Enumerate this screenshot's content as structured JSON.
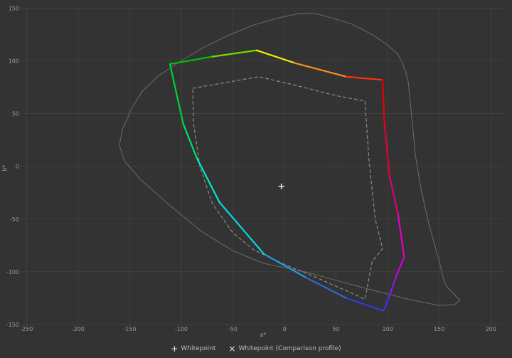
{
  "chart_data": {
    "type": "scatter",
    "title": "",
    "xlabel": "a*",
    "ylabel": "b*",
    "xlim": [
      -255,
      215
    ],
    "ylim": [
      -150,
      153
    ],
    "xticks": [
      -250,
      -200,
      -150,
      -100,
      -50,
      0,
      50,
      100,
      150,
      200
    ],
    "yticks": [
      -150,
      -100,
      -50,
      0,
      50,
      100,
      150
    ],
    "grid": true,
    "legend_position": "bottom-center",
    "legend": [
      {
        "glyph": "+",
        "label": "Whitepoint"
      },
      {
        "glyph": "×",
        "label": "Whitepoint (Comparison profile)"
      }
    ],
    "series": [
      {
        "role": "spectral locus",
        "style": "solid-gray",
        "color": "#6b6b6b",
        "closed": true,
        "points": [
          [
            -160,
            20
          ],
          [
            -157,
            35
          ],
          [
            -148,
            55
          ],
          [
            -138,
            71
          ],
          [
            -122,
            86
          ],
          [
            -100,
            100
          ],
          [
            -80,
            112
          ],
          [
            -55,
            124
          ],
          [
            -30,
            134
          ],
          [
            -5,
            141
          ],
          [
            15,
            145
          ],
          [
            30,
            145
          ],
          [
            45,
            141
          ],
          [
            65,
            135
          ],
          [
            85,
            125
          ],
          [
            100,
            115
          ],
          [
            110,
            106
          ],
          [
            114,
            99
          ],
          [
            118,
            88
          ],
          [
            120,
            80
          ],
          [
            122,
            60
          ],
          [
            124,
            40
          ],
          [
            127,
            10
          ],
          [
            132,
            -20
          ],
          [
            140,
            -55
          ],
          [
            150,
            -90
          ],
          [
            155,
            -110
          ],
          [
            158,
            -115
          ],
          [
            165,
            -122
          ],
          [
            170,
            -127
          ],
          [
            165,
            -131
          ],
          [
            150,
            -132
          ],
          [
            120,
            -126
          ],
          [
            80,
            -116
          ],
          [
            50,
            -108
          ],
          [
            20,
            -100
          ],
          [
            0,
            -96
          ],
          [
            -20,
            -92
          ],
          [
            -50,
            -80
          ],
          [
            -80,
            -62
          ],
          [
            -110,
            -38
          ],
          [
            -140,
            -12
          ],
          [
            -155,
            5
          ],
          [
            -160,
            20
          ]
        ]
      },
      {
        "role": "comparison gamut",
        "style": "dashed-gray",
        "color": "#8c8c8c",
        "closed": false,
        "points": [
          [
            -89,
            74
          ],
          [
            -60,
            79
          ],
          [
            -25,
            85
          ],
          [
            10,
            77
          ],
          [
            50,
            67
          ],
          [
            78,
            62
          ],
          [
            82,
            5
          ],
          [
            88,
            -50
          ],
          [
            95,
            -78
          ],
          [
            85,
            -90
          ],
          [
            78,
            -126
          ],
          [
            60,
            -118
          ],
          [
            30,
            -105
          ],
          [
            0,
            -93
          ],
          [
            -30,
            -79
          ],
          [
            -50,
            -63
          ],
          [
            -70,
            -35
          ],
          [
            -82,
            0
          ],
          [
            -88,
            40
          ],
          [
            -89,
            74
          ]
        ]
      },
      {
        "role": "profile gamut",
        "style": "hue-colored",
        "closed": true,
        "points": [
          [
            -111,
            97
          ],
          [
            -70,
            104
          ],
          [
            -27,
            110
          ],
          [
            10,
            98
          ],
          [
            60,
            85
          ],
          [
            95,
            82
          ],
          [
            97,
            40
          ],
          [
            102,
            -10
          ],
          [
            110,
            -45
          ],
          [
            116,
            -86
          ],
          [
            108,
            -105
          ],
          [
            102,
            -122
          ],
          [
            96,
            -137
          ],
          [
            60,
            -125
          ],
          [
            20,
            -105
          ],
          [
            -20,
            -83
          ],
          [
            -63,
            -34
          ],
          [
            -85,
            8
          ],
          [
            -98,
            40
          ],
          [
            -111,
            97
          ]
        ],
        "colors": [
          "#00c000",
          "#70e000",
          "#f5f000",
          "#f39020",
          "#ff3010",
          "#e80000",
          "#e10038",
          "#d90080",
          "#e700c8",
          "#cc00e0",
          "#8a1ae6",
          "#4a2ae8",
          "#2f3bd7",
          "#2a6cd6",
          "#1f9cdf",
          "#00d8e6",
          "#00e8c8",
          "#00e070",
          "#00d040"
        ]
      }
    ],
    "whitepoint": {
      "x": -3,
      "y": -19
    }
  }
}
